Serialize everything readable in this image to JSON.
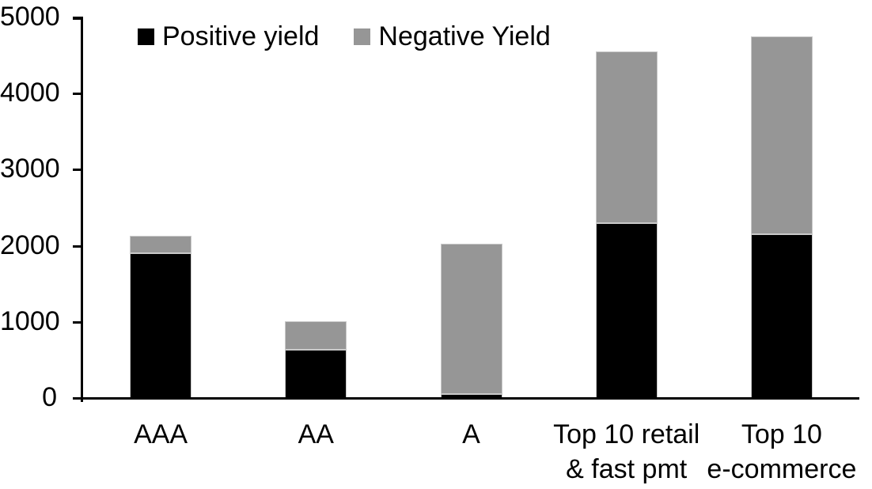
{
  "chart_data": {
    "type": "bar",
    "stacked": true,
    "title": "",
    "categories": [
      "AAA",
      "AA",
      "A",
      "Top 10 retail\n& fast pmt",
      "Top 10\ne-commerce"
    ],
    "series": [
      {
        "name": "Positive yield",
        "color": "#000000",
        "values": [
          1900,
          630,
          50,
          2300,
          2150
        ]
      },
      {
        "name": "Negative Yield",
        "color": "#969696",
        "values": [
          230,
          375,
          1980,
          2250,
          2600
        ]
      }
    ],
    "totals": [
      2130,
      1005,
      2030,
      4550,
      4750
    ],
    "xlabel": "",
    "ylabel": "",
    "ylim": [
      0,
      5000
    ],
    "yticks": [
      0,
      1000,
      2000,
      3000,
      4000,
      5000
    ],
    "ytick_labels": [
      "0",
      "1000",
      "2000",
      "3000",
      "4000",
      "5000"
    ],
    "grid": false,
    "legend_position": "top",
    "axis_color": "#000000",
    "background": "#ffffff"
  }
}
